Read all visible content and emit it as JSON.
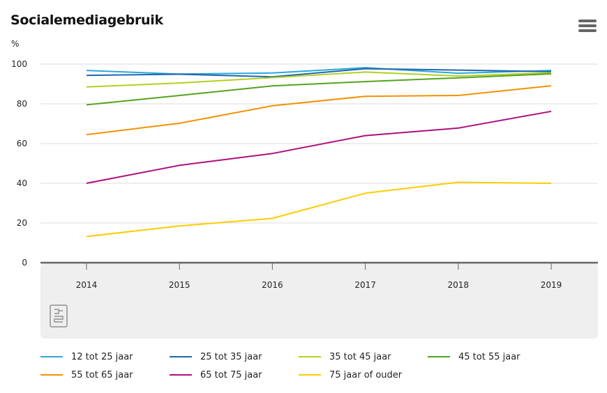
{
  "title": "Socialemediagebruik",
  "menu_icon": "hamburger-menu-icon",
  "logo_icon": "cbs-logo-icon",
  "chart_data": {
    "type": "line",
    "title": "Socialemediagebruik",
    "ylabel": "%",
    "xlabel": "",
    "x": [
      "2014",
      "2015",
      "2016",
      "2017",
      "2018",
      "2019"
    ],
    "ylim": [
      0,
      100
    ],
    "yticks": [
      "0",
      "20",
      "40",
      "60",
      "80",
      "100"
    ],
    "grid": true,
    "legend_position": "bottom",
    "series": [
      {
        "name": "12 tot 25 jaar",
        "color": "#2aa8d8",
        "values": [
          96.8,
          95.0,
          95.5,
          98.2,
          95.4,
          96.8
        ]
      },
      {
        "name": "25 tot 35 jaar",
        "color": "#1f66b0",
        "values": [
          94.3,
          94.9,
          93.6,
          97.7,
          97.0,
          96.2
        ]
      },
      {
        "name": "35 tot 45 jaar",
        "color": "#b4cf1f",
        "values": [
          88.5,
          90.5,
          93.2,
          96.0,
          94.0,
          95.6
        ]
      },
      {
        "name": "45 tot 55 jaar",
        "color": "#53a31d",
        "values": [
          79.5,
          84.2,
          89.0,
          91.2,
          93.1,
          95.1
        ]
      },
      {
        "name": "55 tot 65 jaar",
        "color": "#f39200",
        "values": [
          64.5,
          70.2,
          79.0,
          83.8,
          84.2,
          89.1
        ]
      },
      {
        "name": "65 tot 75 jaar",
        "color": "#af0e80",
        "values": [
          40.0,
          49.0,
          55.0,
          64.0,
          67.8,
          76.2
        ]
      },
      {
        "name": "75 jaar of ouder",
        "color": "#ffcc00",
        "values": [
          13.2,
          18.5,
          22.3,
          35.0,
          40.5,
          40.0
        ]
      }
    ]
  }
}
